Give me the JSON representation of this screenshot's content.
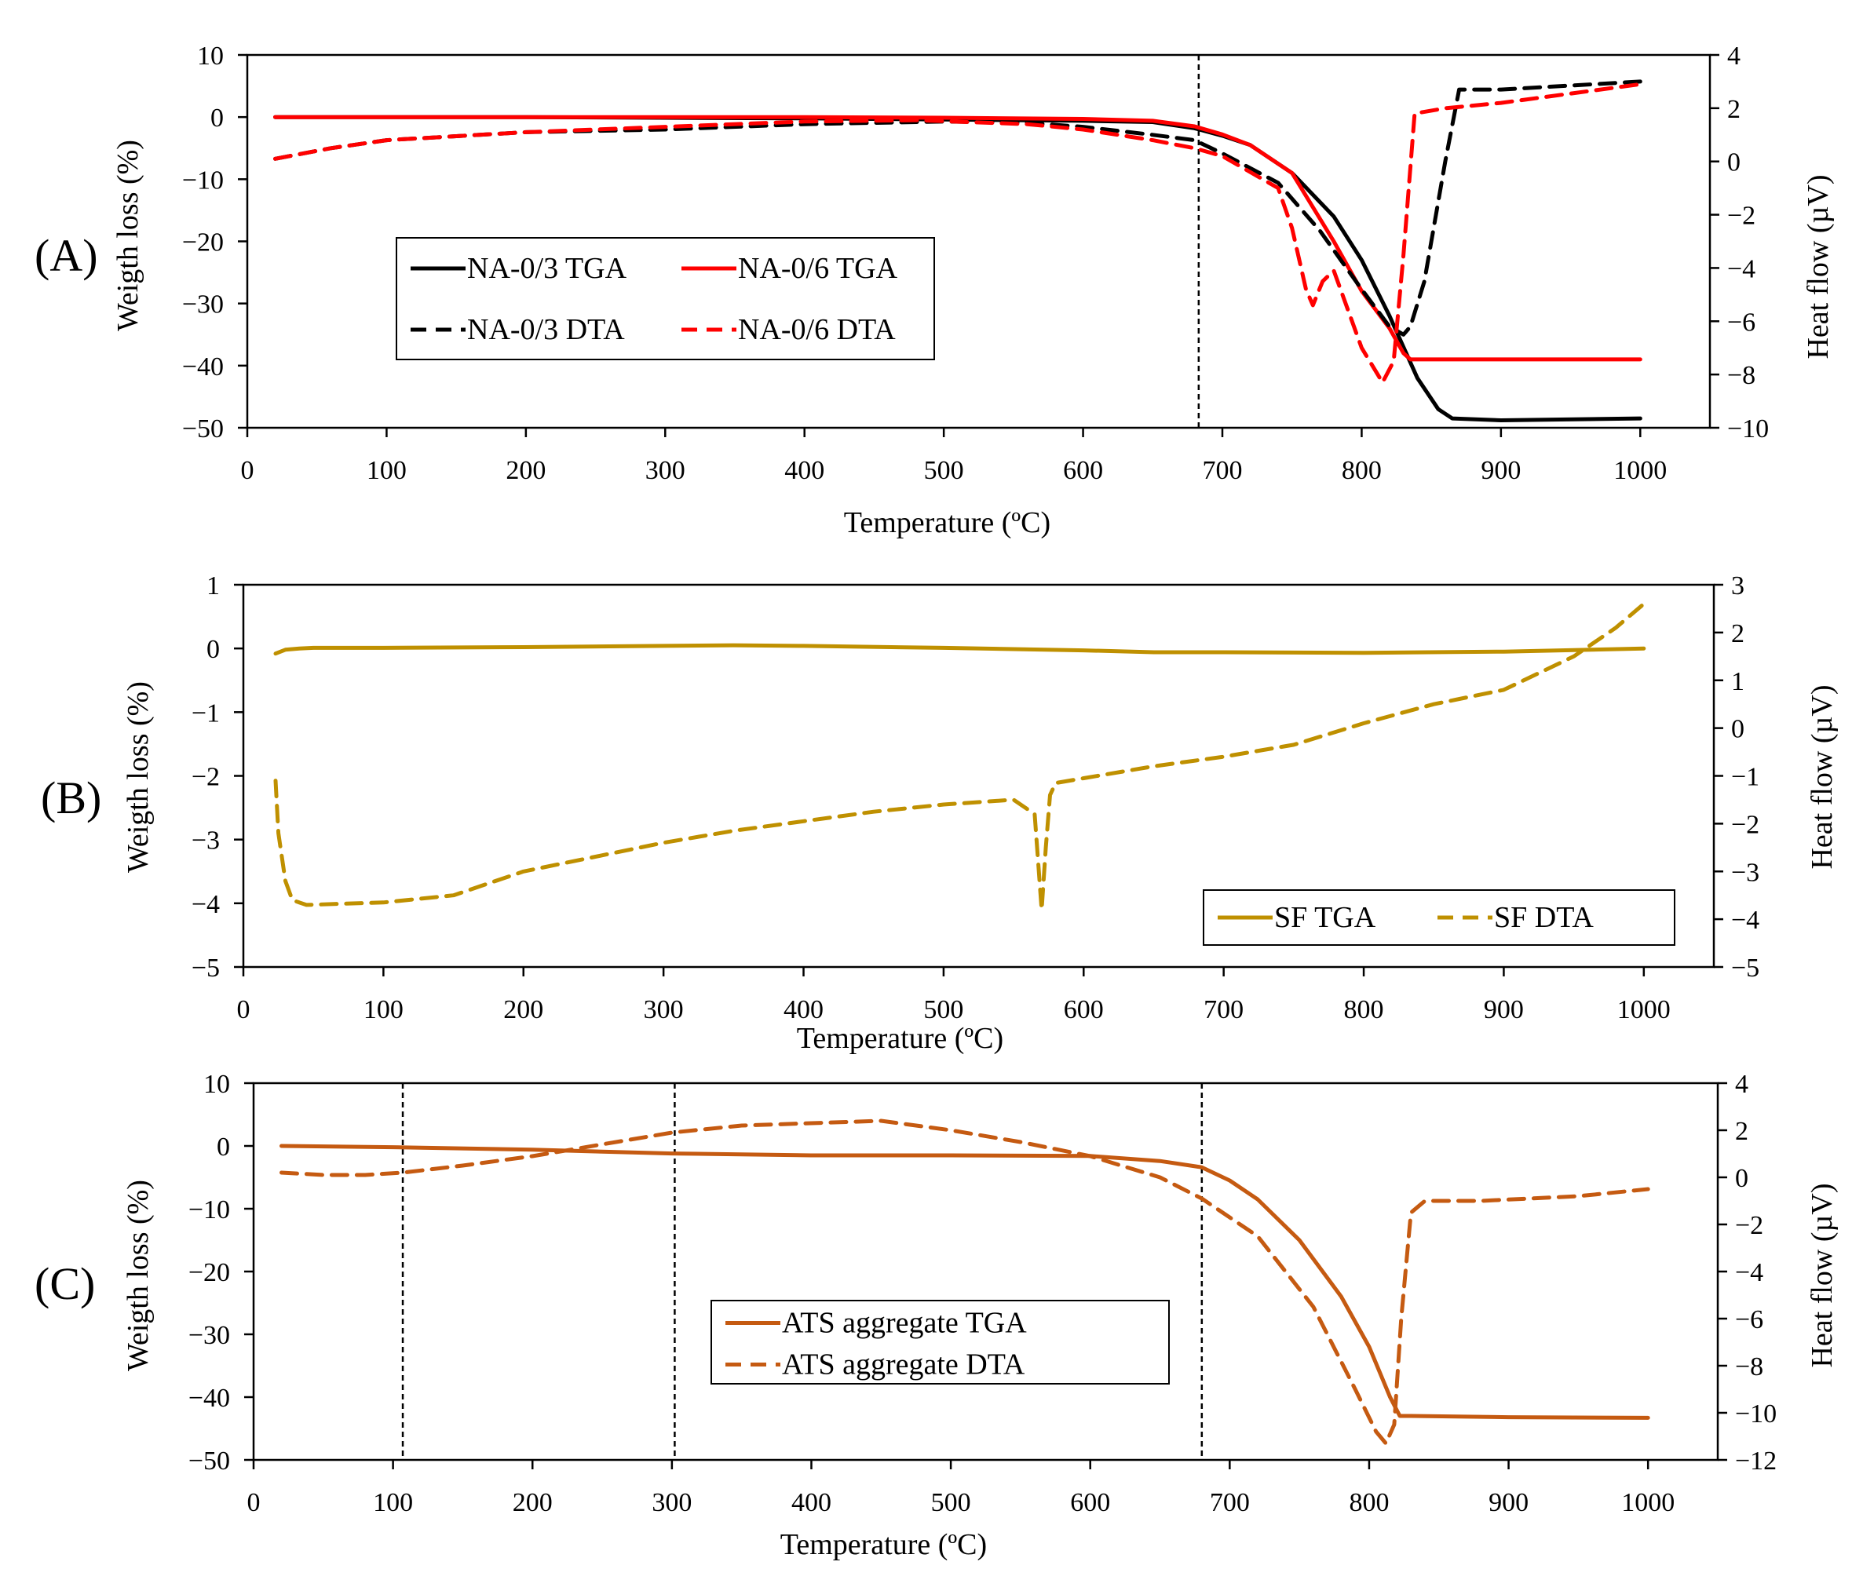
{
  "figure": {
    "panels": [
      {
        "id": "A",
        "label": "(A)"
      },
      {
        "id": "B",
        "label": "(B)"
      },
      {
        "id": "C",
        "label": "(C)"
      }
    ]
  },
  "chart_data": [
    {
      "panel": "(A)",
      "type": "line",
      "xlabel": "Temperature (ºC)",
      "ylabel": "Weigth loss (%)",
      "y2label": "Heat flow (µV)",
      "xlim": [
        0,
        1050
      ],
      "xticks": [
        0,
        100,
        200,
        300,
        400,
        500,
        600,
        700,
        800,
        900,
        1000
      ],
      "ylim": [
        -50,
        10
      ],
      "yticks": [
        10,
        0,
        -10,
        -20,
        -30,
        -40,
        -50
      ],
      "y2lim": [
        -10,
        4
      ],
      "y2ticks": [
        4,
        2,
        0,
        -2,
        -4,
        -6,
        -8,
        -10
      ],
      "vlines": [
        683
      ],
      "legend": "center-left, two columns",
      "series": [
        {
          "name": "NA-0/3 TGA",
          "axis": "left",
          "color": "#000000",
          "style": "solid",
          "x": [
            20,
            200,
            400,
            500,
            600,
            650,
            680,
            700,
            720,
            750,
            780,
            800,
            820,
            840,
            855,
            865,
            900,
            1000
          ],
          "y": [
            0,
            0,
            -0.2,
            -0.4,
            -0.6,
            -0.8,
            -1.8,
            -3,
            -4.5,
            -9,
            -16,
            -23,
            -32,
            -42,
            -47,
            -48.5,
            -48.8,
            -48.5
          ]
        },
        {
          "name": "NA-0/6 TGA",
          "axis": "left",
          "color": "#ff0000",
          "style": "solid",
          "x": [
            20,
            200,
            400,
            500,
            600,
            650,
            680,
            700,
            720,
            750,
            780,
            800,
            820,
            830,
            835,
            850,
            1000
          ],
          "y": [
            0,
            0,
            0,
            -0.1,
            -0.3,
            -0.6,
            -1.5,
            -2.8,
            -4.5,
            -9,
            -20,
            -28,
            -34,
            -38,
            -39,
            -39,
            -39
          ]
        },
        {
          "name": "NA-0/3 DTA",
          "axis": "right",
          "color": "#000000",
          "style": "dashed",
          "x": [
            20,
            60,
            100,
            200,
            300,
            400,
            500,
            560,
            600,
            650,
            680,
            700,
            740,
            770,
            800,
            820,
            830,
            835,
            845,
            860,
            870,
            900,
            1000
          ],
          "y": [
            0.1,
            0.5,
            0.8,
            1.1,
            1.2,
            1.4,
            1.5,
            1.45,
            1.3,
            1.0,
            0.8,
            0.3,
            -0.8,
            -2.6,
            -4.8,
            -6.2,
            -6.5,
            -6.2,
            -4.5,
            0,
            2.7,
            2.7,
            3.0
          ]
        },
        {
          "name": "NA-0/6 DTA",
          "axis": "right",
          "color": "#ff0000",
          "style": "dashed",
          "x": [
            20,
            60,
            100,
            200,
            300,
            400,
            480,
            560,
            600,
            650,
            680,
            700,
            740,
            750,
            760,
            765,
            772,
            780,
            800,
            815,
            823,
            830,
            838,
            860,
            900,
            1000
          ],
          "y": [
            0.1,
            0.5,
            0.8,
            1.1,
            1.3,
            1.5,
            1.55,
            1.4,
            1.2,
            0.8,
            0.5,
            0.2,
            -1,
            -2.5,
            -4.8,
            -5.4,
            -4.5,
            -4.1,
            -7,
            -8.3,
            -7.5,
            -3.5,
            1.8,
            2.0,
            2.2,
            2.9
          ]
        }
      ]
    },
    {
      "panel": "(B)",
      "type": "line",
      "xlabel": "Temperature (ºC)",
      "ylabel": "Weigth loss (%)",
      "y2label": "Heat flow (µV)",
      "xlim": [
        0,
        1050
      ],
      "xticks": [
        0,
        100,
        200,
        300,
        400,
        500,
        600,
        700,
        800,
        900,
        1000
      ],
      "ylim": [
        -5,
        1
      ],
      "yticks": [
        1,
        0,
        -1,
        -2,
        -3,
        -4,
        -5
      ],
      "y2lim": [
        -5,
        3
      ],
      "y2ticks": [
        3,
        2,
        1,
        0,
        -1,
        -2,
        -3,
        -4,
        -5
      ],
      "vlines": [],
      "legend": "bottom-right, two columns",
      "series": [
        {
          "name": "SF TGA",
          "axis": "left",
          "color": "#bf9000",
          "style": "solid",
          "x": [
            23,
            30,
            40,
            50,
            100,
            200,
            300,
            350,
            400,
            500,
            600,
            650,
            700,
            800,
            900,
            1000
          ],
          "y": [
            -0.08,
            -0.02,
            0,
            0.01,
            0.01,
            0.02,
            0.04,
            0.05,
            0.04,
            0.01,
            -0.03,
            -0.06,
            -0.06,
            -0.07,
            -0.05,
            0
          ]
        },
        {
          "name": "SF DTA",
          "axis": "right",
          "color": "#bf9000",
          "style": "dashed",
          "x": [
            23,
            25,
            30,
            35,
            45,
            100,
            150,
            200,
            250,
            300,
            350,
            400,
            450,
            500,
            550,
            565,
            570,
            573,
            576,
            580,
            600,
            650,
            700,
            750,
            800,
            850,
            900,
            950,
            980,
            1000
          ],
          "y": [
            -1.1,
            -2.2,
            -3.2,
            -3.6,
            -3.7,
            -3.65,
            -3.5,
            -3.0,
            -2.7,
            -2.4,
            -2.15,
            -1.95,
            -1.75,
            -1.6,
            -1.5,
            -1.8,
            -3.8,
            -2.5,
            -1.4,
            -1.15,
            -1.05,
            -0.8,
            -0.6,
            -0.35,
            0.1,
            0.5,
            0.8,
            1.5,
            2.1,
            2.6
          ]
        }
      ]
    },
    {
      "panel": "(C)",
      "type": "line",
      "xlabel": "Temperature (ºC)",
      "ylabel": "Weigth loss (%)",
      "y2label": "Heat flow (µV)",
      "xlim": [
        0,
        1050
      ],
      "xticks": [
        0,
        100,
        200,
        300,
        400,
        500,
        600,
        700,
        800,
        900,
        1000
      ],
      "ylim": [
        -50,
        10
      ],
      "yticks": [
        10,
        0,
        -10,
        -20,
        -30,
        -40,
        -50
      ],
      "y2lim": [
        -12,
        4
      ],
      "y2ticks": [
        4,
        2,
        0,
        -2,
        -4,
        -6,
        -8,
        -10,
        -12
      ],
      "vlines": [
        107,
        302,
        680
      ],
      "legend": "center-right, single column",
      "series": [
        {
          "name": "ATS aggregate TGA",
          "axis": "left",
          "color": "#c55a11",
          "style": "solid",
          "x": [
            20,
            100,
            200,
            300,
            400,
            500,
            600,
            650,
            680,
            700,
            720,
            750,
            780,
            800,
            815,
            822,
            830,
            900,
            1000
          ],
          "y": [
            0,
            -0.2,
            -0.6,
            -1.2,
            -1.5,
            -1.5,
            -1.6,
            -2.4,
            -3.4,
            -5.5,
            -8.5,
            -15,
            -24,
            -32,
            -40,
            -43,
            -43,
            -43.2,
            -43.3
          ]
        },
        {
          "name": "ATS aggregate DTA",
          "axis": "right",
          "color": "#c55a11",
          "style": "dashed",
          "x": [
            20,
            50,
            80,
            107,
            150,
            200,
            250,
            300,
            350,
            400,
            450,
            500,
            550,
            600,
            650,
            680,
            720,
            760,
            790,
            805,
            812,
            818,
            823,
            830,
            840,
            880,
            950,
            1000
          ],
          "y": [
            0.2,
            0.1,
            0.1,
            0.2,
            0.5,
            0.9,
            1.4,
            1.9,
            2.2,
            2.3,
            2.4,
            2.0,
            1.5,
            0.9,
            0,
            -0.9,
            -2.5,
            -5.5,
            -9,
            -10.8,
            -11.3,
            -10.5,
            -6,
            -1.5,
            -1.0,
            -1.0,
            -0.8,
            -0.5
          ]
        }
      ]
    }
  ]
}
